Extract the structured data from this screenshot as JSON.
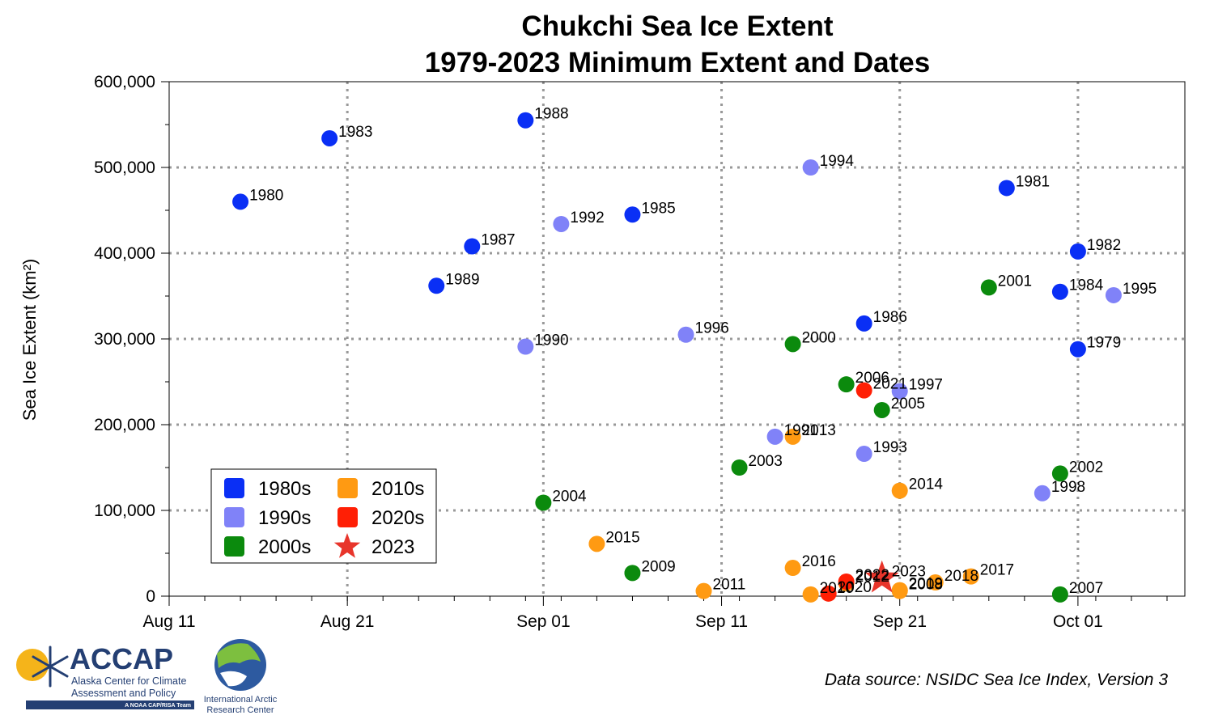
{
  "chart_data": {
    "type": "scatter",
    "title": [
      "Chukchi Sea Ice Extent",
      "1979-2023 Minimum Extent and Dates"
    ],
    "ylabel": "Sea Ice Extent (km²)",
    "xlabel": "",
    "x_axis": {
      "start_date": "Aug 11",
      "end_date": "Oct 07",
      "range_days": [
        0,
        57
      ],
      "tick_labels": [
        {
          "day": 0,
          "label": "Aug 11"
        },
        {
          "day": 10,
          "label": "Aug 21"
        },
        {
          "day": 21,
          "label": "Sep 01"
        },
        {
          "day": 31,
          "label": "Sep 11"
        },
        {
          "day": 41,
          "label": "Sep 21"
        },
        {
          "day": 51,
          "label": "Oct 01"
        }
      ]
    },
    "y_axis": {
      "range": [
        0,
        600000
      ],
      "tick_labels": [
        "0",
        "100,000",
        "200,000",
        "300,000",
        "400,000",
        "500,000",
        "600,000"
      ]
    },
    "grid": true,
    "legend_position": "bottom-left",
    "series": [
      {
        "name": "1980s",
        "color": "#0a2ff5",
        "marker": "circle",
        "points": [
          {
            "year": "1979",
            "date": "Oct 01",
            "extent": 288000
          },
          {
            "year": "1980",
            "date": "Aug 15",
            "extent": 460000
          },
          {
            "year": "1981",
            "date": "Sep 27",
            "extent": 476000
          },
          {
            "year": "1982",
            "date": "Oct 01",
            "extent": 402000
          },
          {
            "year": "1983",
            "date": "Aug 20",
            "extent": 534000
          },
          {
            "year": "1984",
            "date": "Sep 30",
            "extent": 355000
          },
          {
            "year": "1985",
            "date": "Sep 06",
            "extent": 445000
          },
          {
            "year": "1986",
            "date": "Sep 19",
            "extent": 318000
          },
          {
            "year": "1987",
            "date": "Aug 28",
            "extent": 408000
          },
          {
            "year": "1988",
            "date": "Aug 31",
            "extent": 555000
          },
          {
            "year": "1989",
            "date": "Aug 26",
            "extent": 362000
          }
        ]
      },
      {
        "name": "1990s",
        "color": "#8082f8",
        "marker": "circle",
        "points": [
          {
            "year": "1990",
            "date": "Aug 31",
            "extent": 291000
          },
          {
            "year": "1991",
            "date": "Sep 14",
            "extent": 186000
          },
          {
            "year": "1992",
            "date": "Sep 02",
            "extent": 434000
          },
          {
            "year": "1993",
            "date": "Sep 19",
            "extent": 166000
          },
          {
            "year": "1994",
            "date": "Sep 16",
            "extent": 500000
          },
          {
            "year": "1995",
            "date": "Oct 03",
            "extent": 351000
          },
          {
            "year": "1996",
            "date": "Sep 09",
            "extent": 305000
          },
          {
            "year": "1997",
            "date": "Sep 21",
            "extent": 239000
          },
          {
            "year": "1998",
            "date": "Sep 29",
            "extent": 120000
          }
        ]
      },
      {
        "name": "2000s",
        "color": "#0b8a0d",
        "marker": "circle",
        "points": [
          {
            "year": "2000",
            "date": "Sep 15",
            "extent": 294000
          },
          {
            "year": "2001",
            "date": "Sep 26",
            "extent": 360000
          },
          {
            "year": "2002",
            "date": "Sep 30",
            "extent": 143000
          },
          {
            "year": "2003",
            "date": "Sep 12",
            "extent": 150000
          },
          {
            "year": "2004",
            "date": "Sep 01",
            "extent": 109000
          },
          {
            "year": "2005",
            "date": "Sep 20",
            "extent": 217000
          },
          {
            "year": "2006",
            "date": "Sep 18",
            "extent": 247000
          },
          {
            "year": "2007",
            "date": "Sep 30",
            "extent": 2000
          },
          {
            "year": "2009",
            "date": "Sep 06",
            "extent": 27000
          }
        ]
      },
      {
        "name": "2010s",
        "color": "#ff9a12",
        "marker": "circle",
        "points": [
          {
            "year": "2008",
            "date": "Sep 21",
            "extent": 6000
          },
          {
            "year": "2010",
            "date": "Sep 16",
            "extent": 2000
          },
          {
            "year": "2011",
            "date": "Sep 10",
            "extent": 6000
          },
          {
            "year": "2012",
            "date": "Sep 18",
            "extent": 15000
          },
          {
            "year": "2013",
            "date": "Sep 15",
            "extent": 186000
          },
          {
            "year": "2014",
            "date": "Sep 21",
            "extent": 123000
          },
          {
            "year": "2015",
            "date": "Sep 04",
            "extent": 61000
          },
          {
            "year": "2016",
            "date": "Sep 15",
            "extent": 33000
          },
          {
            "year": "2017",
            "date": "Sep 25",
            "extent": 23000
          },
          {
            "year": "2018",
            "date": "Sep 23",
            "extent": 16000
          },
          {
            "year": "2019",
            "date": "Sep 21",
            "extent": 7000
          }
        ]
      },
      {
        "name": "2020s",
        "color": "#ff1f05",
        "marker": "circle",
        "points": [
          {
            "year": "2020",
            "date": "Sep 17",
            "extent": 3000
          },
          {
            "year": "2021",
            "date": "Sep 19",
            "extent": 240000
          },
          {
            "year": "2022",
            "date": "Sep 18",
            "extent": 17000
          }
        ]
      },
      {
        "name": "2023",
        "color": "#e8352b",
        "marker": "star",
        "points": [
          {
            "year": "2023",
            "date": "Sep 20",
            "extent": 21000
          }
        ]
      }
    ],
    "legend": [
      {
        "label": "1980s",
        "color": "#0a2ff5",
        "marker": "square"
      },
      {
        "label": "2010s",
        "color": "#ff9a12",
        "marker": "square"
      },
      {
        "label": "1990s",
        "color": "#8082f8",
        "marker": "square"
      },
      {
        "label": "2020s",
        "color": "#ff1f05",
        "marker": "square"
      },
      {
        "label": "2000s",
        "color": "#0b8a0d",
        "marker": "square"
      },
      {
        "label": "2023",
        "color": "#e8352b",
        "marker": "star"
      }
    ],
    "source": "Data source: NSIDC Sea Ice Index, Version 3"
  },
  "logos": {
    "accap_title": "ACCAP",
    "accap_sub1": "Alaska Center for Climate",
    "accap_sub2": "Assessment and Policy",
    "accap_small": "A NOAA CAP/RISA Team",
    "iarc_line1": "International Arctic",
    "iarc_line2": "Research Center"
  }
}
